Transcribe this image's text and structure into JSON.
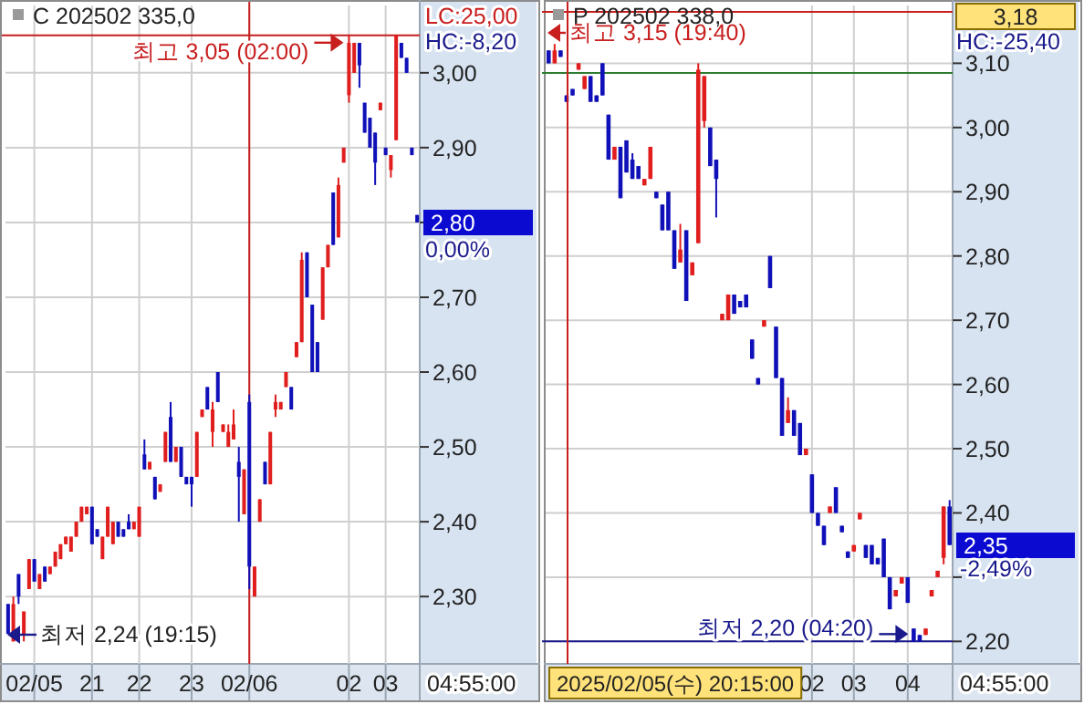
{
  "chart_data": [
    {
      "type": "candlestick",
      "title": "C 202502 335,0",
      "grid": true,
      "categories": [
        null,
        null,
        null,
        null,
        null,
        "02/05",
        null,
        null,
        null,
        null,
        null,
        null,
        null,
        null,
        null,
        null,
        "21",
        null,
        null,
        null,
        null,
        null,
        null,
        null,
        null,
        "22",
        null,
        null,
        null,
        null,
        null,
        null,
        null,
        null,
        null,
        "23",
        null,
        null,
        null,
        null,
        null,
        null,
        null,
        null,
        null,
        null,
        "02/06",
        null,
        null,
        null,
        null,
        null,
        null,
        null,
        null,
        null,
        null,
        null,
        null,
        null,
        null,
        null,
        null,
        null,
        null,
        "02",
        null,
        null,
        null,
        null,
        null,
        null,
        "03",
        null,
        null,
        null,
        null,
        null,
        null
      ],
      "ohlc": [
        [
          2.29,
          2.29,
          2.25,
          2.25
        ],
        [
          2.24,
          2.3,
          2.24,
          2.29
        ],
        [
          2.33,
          2.33,
          2.29,
          2.3
        ],
        [
          2.25,
          2.28,
          2.24,
          2.28
        ],
        [
          2.31,
          2.35,
          2.31,
          2.35
        ],
        [
          2.35,
          2.35,
          2.32,
          2.32
        ],
        [
          2.31,
          2.33,
          2.31,
          2.33
        ],
        [
          2.34,
          2.34,
          2.32,
          2.32
        ],
        [
          2.33,
          2.34,
          2.33,
          2.34
        ],
        [
          2.34,
          2.36,
          2.34,
          2.36
        ],
        [
          2.35,
          2.37,
          2.35,
          2.37
        ],
        [
          2.37,
          2.38,
          2.37,
          2.38
        ],
        [
          2.36,
          2.38,
          2.36,
          2.38
        ],
        [
          2.38,
          2.4,
          2.38,
          2.4
        ],
        [
          2.4,
          2.42,
          2.4,
          2.42
        ],
        [
          2.41,
          2.42,
          2.41,
          2.42
        ],
        [
          2.42,
          2.42,
          2.37,
          2.37
        ],
        [
          2.39,
          2.39,
          2.38,
          2.38
        ],
        [
          2.35,
          2.38,
          2.35,
          2.38
        ],
        [
          2.38,
          2.42,
          2.38,
          2.42
        ],
        [
          2.37,
          2.4,
          2.37,
          2.4
        ],
        [
          2.4,
          2.4,
          2.38,
          2.38
        ],
        [
          2.39,
          2.39,
          2.38,
          2.38
        ],
        [
          2.4,
          2.41,
          2.39,
          2.39
        ],
        [
          2.39,
          2.4,
          2.39,
          2.4
        ],
        [
          2.38,
          2.42,
          2.38,
          2.42
        ],
        [
          2.49,
          2.51,
          2.47,
          2.47
        ],
        [
          2.47,
          2.48,
          2.47,
          2.48
        ],
        [
          2.46,
          2.46,
          2.43,
          2.43
        ],
        [
          2.44,
          2.45,
          2.44,
          2.45
        ],
        [
          2.48,
          2.52,
          2.48,
          2.52
        ],
        [
          2.54,
          2.56,
          2.48,
          2.48
        ],
        [
          2.48,
          2.5,
          2.48,
          2.5
        ],
        [
          2.5,
          2.5,
          2.46,
          2.46
        ],
        [
          2.46,
          2.46,
          2.45,
          2.45
        ],
        [
          2.46,
          2.46,
          2.42,
          2.45
        ],
        [
          2.46,
          2.52,
          2.46,
          2.52
        ],
        [
          2.54,
          2.55,
          2.54,
          2.55
        ],
        [
          2.58,
          2.58,
          2.55,
          2.55
        ],
        [
          2.52,
          2.56,
          2.5,
          2.55
        ],
        [
          2.6,
          2.6,
          2.56,
          2.56
        ],
        [
          2.52,
          2.53,
          2.52,
          2.53
        ],
        [
          2.5,
          2.53,
          2.5,
          2.52
        ],
        [
          2.51,
          2.55,
          2.51,
          2.53
        ],
        [
          2.48,
          2.5,
          2.4,
          2.46
        ],
        [
          2.41,
          2.47,
          2.41,
          2.47
        ],
        [
          2.56,
          2.57,
          2.31,
          2.34
        ],
        [
          2.3,
          2.34,
          2.3,
          2.34
        ],
        [
          2.4,
          2.43,
          2.4,
          2.43
        ],
        [
          2.48,
          2.48,
          2.45,
          2.45
        ],
        [
          2.45,
          2.52,
          2.45,
          2.52
        ],
        [
          2.55,
          2.57,
          2.54,
          2.56
        ],
        [
          2.55,
          2.56,
          2.55,
          2.56
        ],
        [
          2.58,
          2.6,
          2.58,
          2.6
        ],
        [
          2.58,
          2.58,
          2.55,
          2.55
        ],
        [
          2.62,
          2.64,
          2.62,
          2.64
        ],
        [
          2.64,
          2.76,
          2.64,
          2.75
        ],
        [
          2.76,
          2.76,
          2.7,
          2.7
        ],
        [
          2.69,
          2.69,
          2.6,
          2.6
        ],
        [
          2.64,
          2.64,
          2.6,
          2.6
        ],
        [
          2.67,
          2.74,
          2.67,
          2.74
        ],
        [
          2.74,
          2.77,
          2.74,
          2.77
        ],
        [
          2.84,
          2.84,
          2.77,
          2.77
        ],
        [
          2.78,
          2.86,
          2.78,
          2.85
        ],
        [
          2.88,
          2.9,
          2.88,
          2.9
        ],
        [
          2.97,
          3.05,
          2.96,
          3.04
        ],
        [
          3.0,
          3.04,
          3.0,
          3.04
        ],
        [
          3.04,
          3.04,
          2.98,
          3.01
        ],
        [
          2.96,
          2.96,
          2.92,
          2.92
        ],
        [
          2.94,
          2.94,
          2.9,
          2.9
        ],
        [
          2.92,
          2.92,
          2.85,
          2.88
        ],
        [
          2.95,
          2.96,
          2.95,
          2.96
        ],
        [
          2.9,
          2.9,
          2.89,
          2.89
        ],
        [
          2.87,
          2.89,
          2.86,
          2.89
        ],
        [
          2.91,
          3.05,
          2.91,
          3.05
        ],
        [
          3.04,
          3.04,
          3.02,
          3.02
        ],
        [
          3.02,
          3.02,
          3.0,
          3.0
        ],
        [
          2.9,
          2.9,
          2.89,
          2.89
        ],
        [
          2.81,
          2.81,
          2.8,
          2.8
        ]
      ],
      "ylim": [
        2.21,
        3.09
      ],
      "yticks": [
        {
          "value": 2.3,
          "label": "2,30"
        },
        {
          "value": 2.4,
          "label": "2,40"
        },
        {
          "value": 2.5,
          "label": "2,50"
        },
        {
          "value": 2.6,
          "label": "2,60"
        },
        {
          "value": 2.7,
          "label": "2,70"
        },
        {
          "value": 2.8,
          "label": null
        },
        {
          "value": 2.9,
          "label": "2,90"
        },
        {
          "value": 3.0,
          "label": "3,00"
        }
      ],
      "ref_lines": [
        {
          "axis": "y",
          "value": 3.05,
          "label": "최고 3,05 (02:00)",
          "color": "#c81e1e"
        },
        {
          "axis": "x",
          "value": "02/06",
          "color": "#c81e1e"
        }
      ],
      "annotations": [
        "LC:25,00",
        "HC:-8,20",
        "2,80",
        "0,00%",
        "04:55:00",
        "최저 2,24 (19:15)"
      ]
    },
    {
      "type": "candlestick",
      "title": "P 202502 338,0",
      "grid": true,
      "categories": [
        null,
        null,
        null,
        null,
        null,
        null,
        null,
        null,
        null,
        null,
        null,
        null,
        null,
        null,
        null,
        null,
        null,
        null,
        null,
        null,
        null,
        null,
        null,
        null,
        null,
        null,
        null,
        null,
        null,
        null,
        null,
        null,
        null,
        null,
        null,
        null,
        null,
        null,
        null,
        null,
        null,
        null,
        null,
        null,
        "02",
        null,
        null,
        null,
        null,
        null,
        null,
        "03",
        null,
        null,
        null,
        null,
        null,
        null,
        null,
        null,
        "04",
        null,
        null,
        null,
        null,
        null,
        null,
        null
      ],
      "ohlc": [
        [
          3.12,
          3.12,
          3.1,
          3.1
        ],
        [
          3.1,
          3.13,
          3.1,
          3.12
        ],
        [
          3.12,
          3.12,
          3.11,
          3.11
        ],
        [
          3.05,
          3.05,
          3.04,
          3.04
        ],
        [
          3.06,
          3.06,
          3.05,
          3.05
        ],
        [
          3.09,
          3.1,
          3.09,
          3.1
        ],
        [
          3.06,
          3.08,
          3.06,
          3.08
        ],
        [
          3.08,
          3.08,
          3.04,
          3.04
        ],
        [
          3.05,
          3.05,
          3.04,
          3.04
        ],
        [
          3.1,
          3.1,
          3.05,
          3.05
        ],
        [
          3.02,
          3.02,
          2.95,
          2.95
        ],
        [
          2.95,
          2.97,
          2.95,
          2.97
        ],
        [
          2.97,
          2.97,
          2.89,
          2.89
        ],
        [
          2.98,
          2.98,
          2.93,
          2.93
        ],
        [
          2.95,
          2.96,
          2.92,
          2.92
        ],
        [
          2.94,
          2.94,
          2.92,
          2.92
        ],
        [
          2.91,
          2.92,
          2.91,
          2.92
        ],
        [
          2.92,
          2.97,
          2.92,
          2.97
        ],
        [
          2.9,
          2.9,
          2.89,
          2.89
        ],
        [
          2.88,
          2.88,
          2.84,
          2.84
        ],
        [
          2.9,
          2.9,
          2.84,
          2.84
        ],
        [
          2.84,
          2.84,
          2.78,
          2.78
        ],
        [
          2.79,
          2.85,
          2.79,
          2.81
        ],
        [
          2.84,
          2.84,
          2.73,
          2.73
        ],
        [
          2.77,
          2.79,
          2.77,
          2.79
        ],
        [
          2.82,
          3.1,
          2.82,
          3.09
        ],
        [
          3.01,
          3.08,
          3.0,
          3.08
        ],
        [
          3.0,
          3.0,
          2.94,
          2.94
        ],
        [
          2.95,
          2.95,
          2.86,
          2.92
        ],
        [
          2.7,
          2.71,
          2.7,
          2.71
        ],
        [
          2.7,
          2.74,
          2.7,
          2.74
        ],
        [
          2.74,
          2.74,
          2.71,
          2.71
        ],
        [
          2.73,
          2.73,
          2.72,
          2.72
        ],
        [
          2.74,
          2.74,
          2.72,
          2.72
        ],
        [
          2.67,
          2.67,
          2.64,
          2.64
        ],
        [
          2.61,
          2.61,
          2.6,
          2.6
        ],
        [
          2.69,
          2.7,
          2.69,
          2.7
        ],
        [
          2.8,
          2.8,
          2.75,
          2.75
        ],
        [
          2.69,
          2.69,
          2.61,
          2.61
        ],
        [
          2.61,
          2.61,
          2.52,
          2.52
        ],
        [
          2.54,
          2.58,
          2.54,
          2.56
        ],
        [
          2.56,
          2.56,
          2.52,
          2.52
        ],
        [
          2.54,
          2.54,
          2.49,
          2.49
        ],
        [
          2.49,
          2.5,
          2.49,
          2.5
        ],
        [
          2.46,
          2.46,
          2.4,
          2.4
        ],
        [
          2.4,
          2.4,
          2.38,
          2.38
        ],
        [
          2.38,
          2.38,
          2.35,
          2.35
        ],
        [
          2.4,
          2.41,
          2.4,
          2.41
        ],
        [
          2.44,
          2.44,
          2.4,
          2.4
        ],
        [
          2.38,
          2.38,
          2.37,
          2.37
        ],
        [
          2.34,
          2.34,
          2.33,
          2.33
        ],
        [
          2.34,
          2.35,
          2.34,
          2.35
        ],
        [
          2.39,
          2.4,
          2.39,
          2.4
        ],
        [
          2.35,
          2.35,
          2.33,
          2.33
        ],
        [
          2.35,
          2.35,
          2.32,
          2.32
        ],
        [
          2.33,
          2.33,
          2.32,
          2.32
        ],
        [
          2.36,
          2.36,
          2.3,
          2.3
        ],
        [
          2.3,
          2.3,
          2.25,
          2.25
        ],
        [
          2.27,
          2.28,
          2.27,
          2.28
        ],
        [
          2.29,
          2.3,
          2.29,
          2.3
        ],
        [
          2.3,
          2.3,
          2.26,
          2.26
        ],
        [
          2.22,
          2.22,
          2.2,
          2.2
        ],
        [
          2.21,
          2.21,
          2.2,
          2.2
        ],
        [
          2.21,
          2.22,
          2.21,
          2.22
        ],
        [
          2.27,
          2.28,
          2.27,
          2.28
        ],
        [
          2.3,
          2.31,
          2.3,
          2.31
        ],
        [
          2.33,
          2.41,
          2.32,
          2.41
        ],
        [
          2.41,
          2.42,
          2.35,
          2.35
        ]
      ],
      "ylim": [
        2.165,
        3.19
      ],
      "yticks": [
        {
          "value": 2.2,
          "label": "2,20"
        },
        {
          "value": 2.3,
          "label": null
        },
        {
          "value": 2.4,
          "label": "2,40"
        },
        {
          "value": 2.5,
          "label": "2,50"
        },
        {
          "value": 2.6,
          "label": "2,60"
        },
        {
          "value": 2.7,
          "label": "2,70"
        },
        {
          "value": 2.8,
          "label": "2,80"
        },
        {
          "value": 2.9,
          "label": "2,90"
        },
        {
          "value": 3.0,
          "label": "3,00"
        },
        {
          "value": 3.1,
          "label": "3,10"
        }
      ],
      "ref_lines": [
        {
          "axis": "y",
          "value": 3.18,
          "color": "#c81e1e"
        },
        {
          "axis": "y",
          "value": 3.085,
          "color": "#2e7d32"
        },
        {
          "axis": "y",
          "value": 2.2,
          "label": "최저 2,20 (04:20)",
          "color": "#1a1a8c"
        }
      ],
      "annotations": [
        "최고 3,15 (19:40)",
        "HC:-25,40",
        "3,18",
        "2,35",
        "-2,49%",
        "04:55:00",
        "2025/02/05(수) 20:15:00"
      ]
    }
  ]
}
